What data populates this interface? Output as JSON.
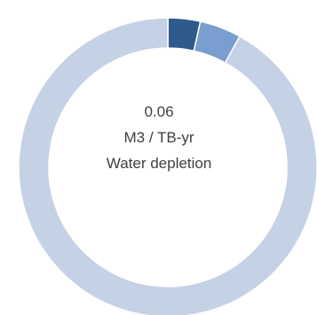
{
  "chart_data": {
    "type": "pie",
    "donut": true,
    "slices": [
      {
        "value": 3.5,
        "color": "#2F5A8C"
      },
      {
        "value": 4.5,
        "color": "#7B9ED0"
      },
      {
        "value": 92.0,
        "color": "#C5D1E5"
      }
    ],
    "center": {
      "value": "0.06",
      "unit": "M3 / TB-yr",
      "label": "Water depletion"
    }
  }
}
